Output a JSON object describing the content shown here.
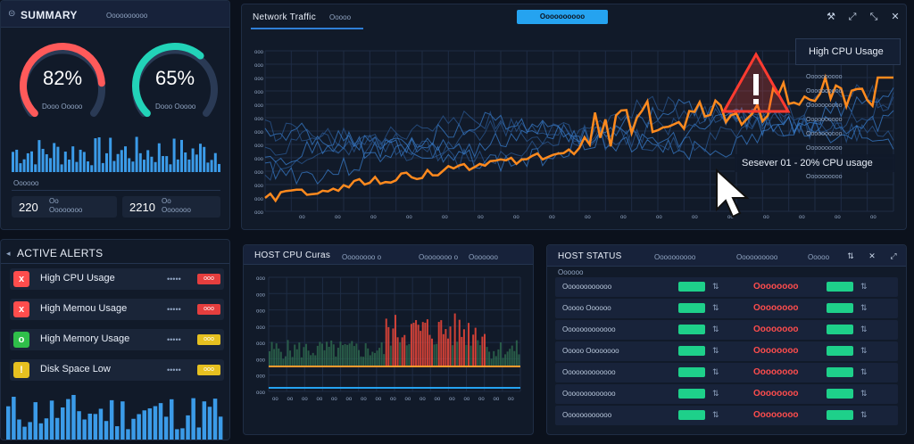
{
  "summary": {
    "title": "SUMMARY",
    "header_text": "Oooooooooo",
    "gauges": [
      {
        "value": "82%",
        "sub": "Dooo Ooooo",
        "pct": 0.82,
        "color": "#ff5a5a"
      },
      {
        "value": "65%",
        "sub": "Dooo Ooooo",
        "pct": 0.65,
        "color": "#22d3b8"
      }
    ],
    "bars_label": "Oooooo",
    "stats": [
      {
        "value": "220",
        "top": "Oo",
        "sub": "Oooooooo"
      },
      {
        "value": "2210",
        "top": "Oo",
        "sub": "Ooooooo"
      }
    ]
  },
  "network": {
    "title": "Network Traffic",
    "tab": "Ooooo",
    "button": "Oooooooooo",
    "alert_title": "High CPU Usage",
    "alert_detail": "Sesever 01 - 20% CPU usage",
    "y_ticks": [
      "ooo",
      "ooo",
      "ooo",
      "ooo",
      "ooo",
      "ooo",
      "ooo",
      "ooo",
      "ooo",
      "ooo",
      "ooo",
      "ooo",
      "ooo"
    ],
    "x_ticks": [
      "oo",
      "oo",
      "oo",
      "oo",
      "oo",
      "oo",
      "oo",
      "oo",
      "oo",
      "oo",
      "oo",
      "oo",
      "oo",
      "oo",
      "oo",
      "oo",
      "oo"
    ],
    "side_items": [
      "Oooooooooo",
      "Oooooooooo",
      "Oooooooooo",
      "Oooooooooo",
      "Oooooooooo",
      "Oooooooooo",
      "Oooooooooo",
      "Oooooooooo"
    ]
  },
  "alerts": {
    "title": "ACTIVE ALERTS",
    "items": [
      {
        "label": "High CPU Usage",
        "icon": "x",
        "color": "#ff4d4d",
        "badge_color": "#e53e3e",
        "badge": "ooo"
      },
      {
        "label": "High Memou Usage",
        "icon": "x",
        "color": "#ff4d4d",
        "badge_color": "#e53e3e",
        "badge": "ooo"
      },
      {
        "label": "High Memory Usage",
        "icon": "o",
        "color": "#2fbf4a",
        "badge_color": "#e6c020",
        "badge": "ooo"
      },
      {
        "label": "Disk Space Low",
        "icon": "!",
        "color": "#e6c020",
        "badge_color": "#e6c020",
        "badge": "ooo"
      }
    ],
    "dots": "•••••"
  },
  "hostcpu": {
    "title": "HOST CPU Curas",
    "tabs": [
      "Oooooooo o",
      "Oooooooo o",
      "Ooooooo"
    ],
    "y_ticks": [
      "ooo",
      "ooo",
      "ooo",
      "ooo",
      "ooo",
      "ooo",
      "ooo",
      "ooo"
    ],
    "x_ticks": [
      "oo",
      "oo",
      "oo",
      "oo",
      "oo",
      "oo",
      "oo",
      "oo",
      "oo",
      "oo",
      "oo",
      "oo",
      "oo",
      "oo",
      "oo",
      "oo",
      "oo"
    ]
  },
  "hoststatus": {
    "title": "HOST STATUS",
    "tabs": [
      "Oooooooooo",
      "Oooooooooo",
      "Ooooo"
    ],
    "header_text": "Oooooo",
    "rows": [
      {
        "name": "Oooooooooooo",
        "status": "Oooooooo"
      },
      {
        "name": "Ooooo Oooooo",
        "status": "Oooooooo"
      },
      {
        "name": "Ooooooooooooo",
        "status": "Oooooooo"
      },
      {
        "name": "Ooooo Oooooooo",
        "status": "Oooooooo"
      },
      {
        "name": "Ooooooooooooo",
        "status": "Oooooooo"
      },
      {
        "name": "Ooooooooooooo",
        "status": "Oooooooo"
      },
      {
        "name": "Oooooooooooo",
        "status": "Oooooooo"
      }
    ]
  }
}
